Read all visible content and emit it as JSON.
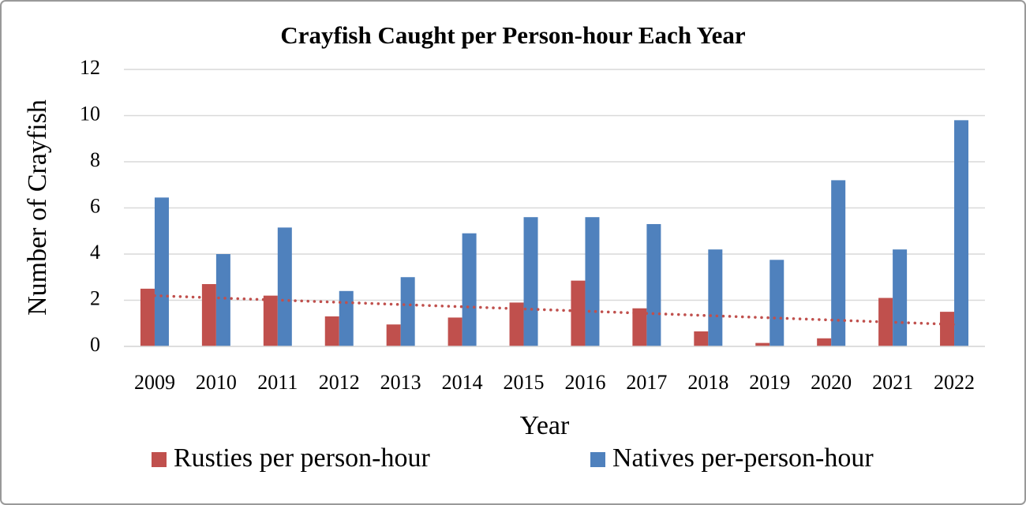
{
  "chart_data": {
    "type": "bar",
    "title": "Crayfish Caught per Person-hour Each Year",
    "x_label": "Year",
    "y_label": "Number of Crayfish",
    "categories": [
      "2009",
      "2010",
      "2011",
      "2012",
      "2013",
      "2014",
      "2015",
      "2016",
      "2017",
      "2018",
      "2019",
      "2020",
      "2021",
      "2022"
    ],
    "series": [
      {
        "name": "Rusties per person-hour",
        "color": "#c0504d",
        "trendline": true,
        "values": [
          2.5,
          2.7,
          2.2,
          1.3,
          0.95,
          1.25,
          1.9,
          2.85,
          1.65,
          0.65,
          0.15,
          0.35,
          2.1,
          1.5
        ]
      },
      {
        "name": "Natives per-person-hour",
        "color": "#4f81bd",
        "values": [
          6.45,
          4.0,
          5.15,
          2.4,
          3.0,
          4.9,
          5.6,
          5.6,
          5.3,
          4.2,
          3.75,
          7.2,
          4.2,
          9.8
        ]
      }
    ],
    "ylim": [
      0,
      12
    ],
    "yticks": [
      0,
      2,
      4,
      6,
      8,
      10,
      12
    ],
    "grid": true,
    "legend": "bottom"
  }
}
